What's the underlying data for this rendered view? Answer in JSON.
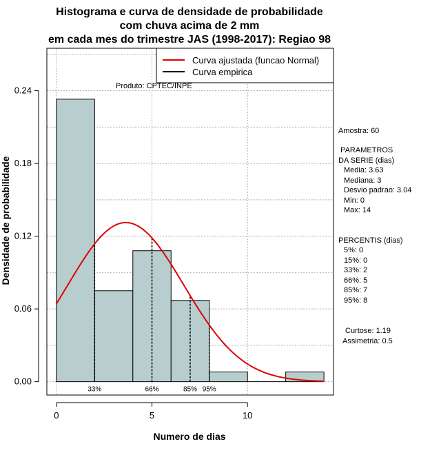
{
  "chart_data": {
    "type": "histogram",
    "title": [
      "Histograma e curva de densidade de probabilidade",
      "com chuva acima de 2 mm",
      "em cada mes do trimestre JAS (1998-2017): Regiao 98"
    ],
    "xlabel": "Numero de dias",
    "ylabel": "Densidade de probabilidade",
    "xlim": [
      -0.5,
      14.5
    ],
    "ylim": [
      -0.011,
      0.275
    ],
    "x_ticks": [
      0,
      5,
      10
    ],
    "y_ticks": [
      0.0,
      0.06,
      0.12,
      0.18,
      0.24
    ],
    "y_tick_labels": [
      "0.00",
      "0.06",
      "0.12",
      "0.18",
      "0.24"
    ],
    "bins": [
      {
        "x0": 0,
        "x1": 2,
        "density": 0.233
      },
      {
        "x0": 2,
        "x1": 4,
        "density": 0.075
      },
      {
        "x0": 4,
        "x1": 6,
        "density": 0.108
      },
      {
        "x0": 6,
        "x1": 8,
        "density": 0.067
      },
      {
        "x0": 8,
        "x1": 10,
        "density": 0.008
      },
      {
        "x0": 10,
        "x1": 12,
        "density": 0.0
      },
      {
        "x0": 12,
        "x1": 14,
        "density": 0.008
      }
    ],
    "normal_fit": {
      "mean": 3.63,
      "sd": 3.04,
      "from": 0,
      "to": 14
    },
    "percentile_lines": [
      {
        "x": 2,
        "label": "33%"
      },
      {
        "x": 5,
        "label": "66%"
      },
      {
        "x": 7,
        "label": "85%"
      },
      {
        "x": 8,
        "label": "95%"
      }
    ],
    "legend": [
      {
        "label": "Curva ajustada (funcao Normal)",
        "color": "#e00000"
      },
      {
        "label": "Curva empirica",
        "color": "#000000"
      }
    ],
    "colors": {
      "bar_fill": "#b8cece",
      "bar_stroke": "#000000",
      "curve": "#e00000",
      "grid": "#b0b0b0"
    }
  },
  "annotations": {
    "produto": "Produto: CPTEC/INPE",
    "sample": "Amostra: 60",
    "params_title": [
      " PARAMETROS",
      "DA SERIE (dias)"
    ],
    "params": [
      "Media: 3.63",
      "Mediana: 3",
      "Desvio padrao: 3.04",
      "Min: 0",
      "Max: 14"
    ],
    "perc_title": "PERCENTIS (dias)",
    "percentiles": [
      "5%: 0",
      "15%: 0",
      "33%: 2",
      "66%: 5",
      "85%: 7",
      "95%: 8"
    ],
    "curtose": "Curtose: 1.19",
    "assimetria": "Assimetria: 0.5"
  }
}
